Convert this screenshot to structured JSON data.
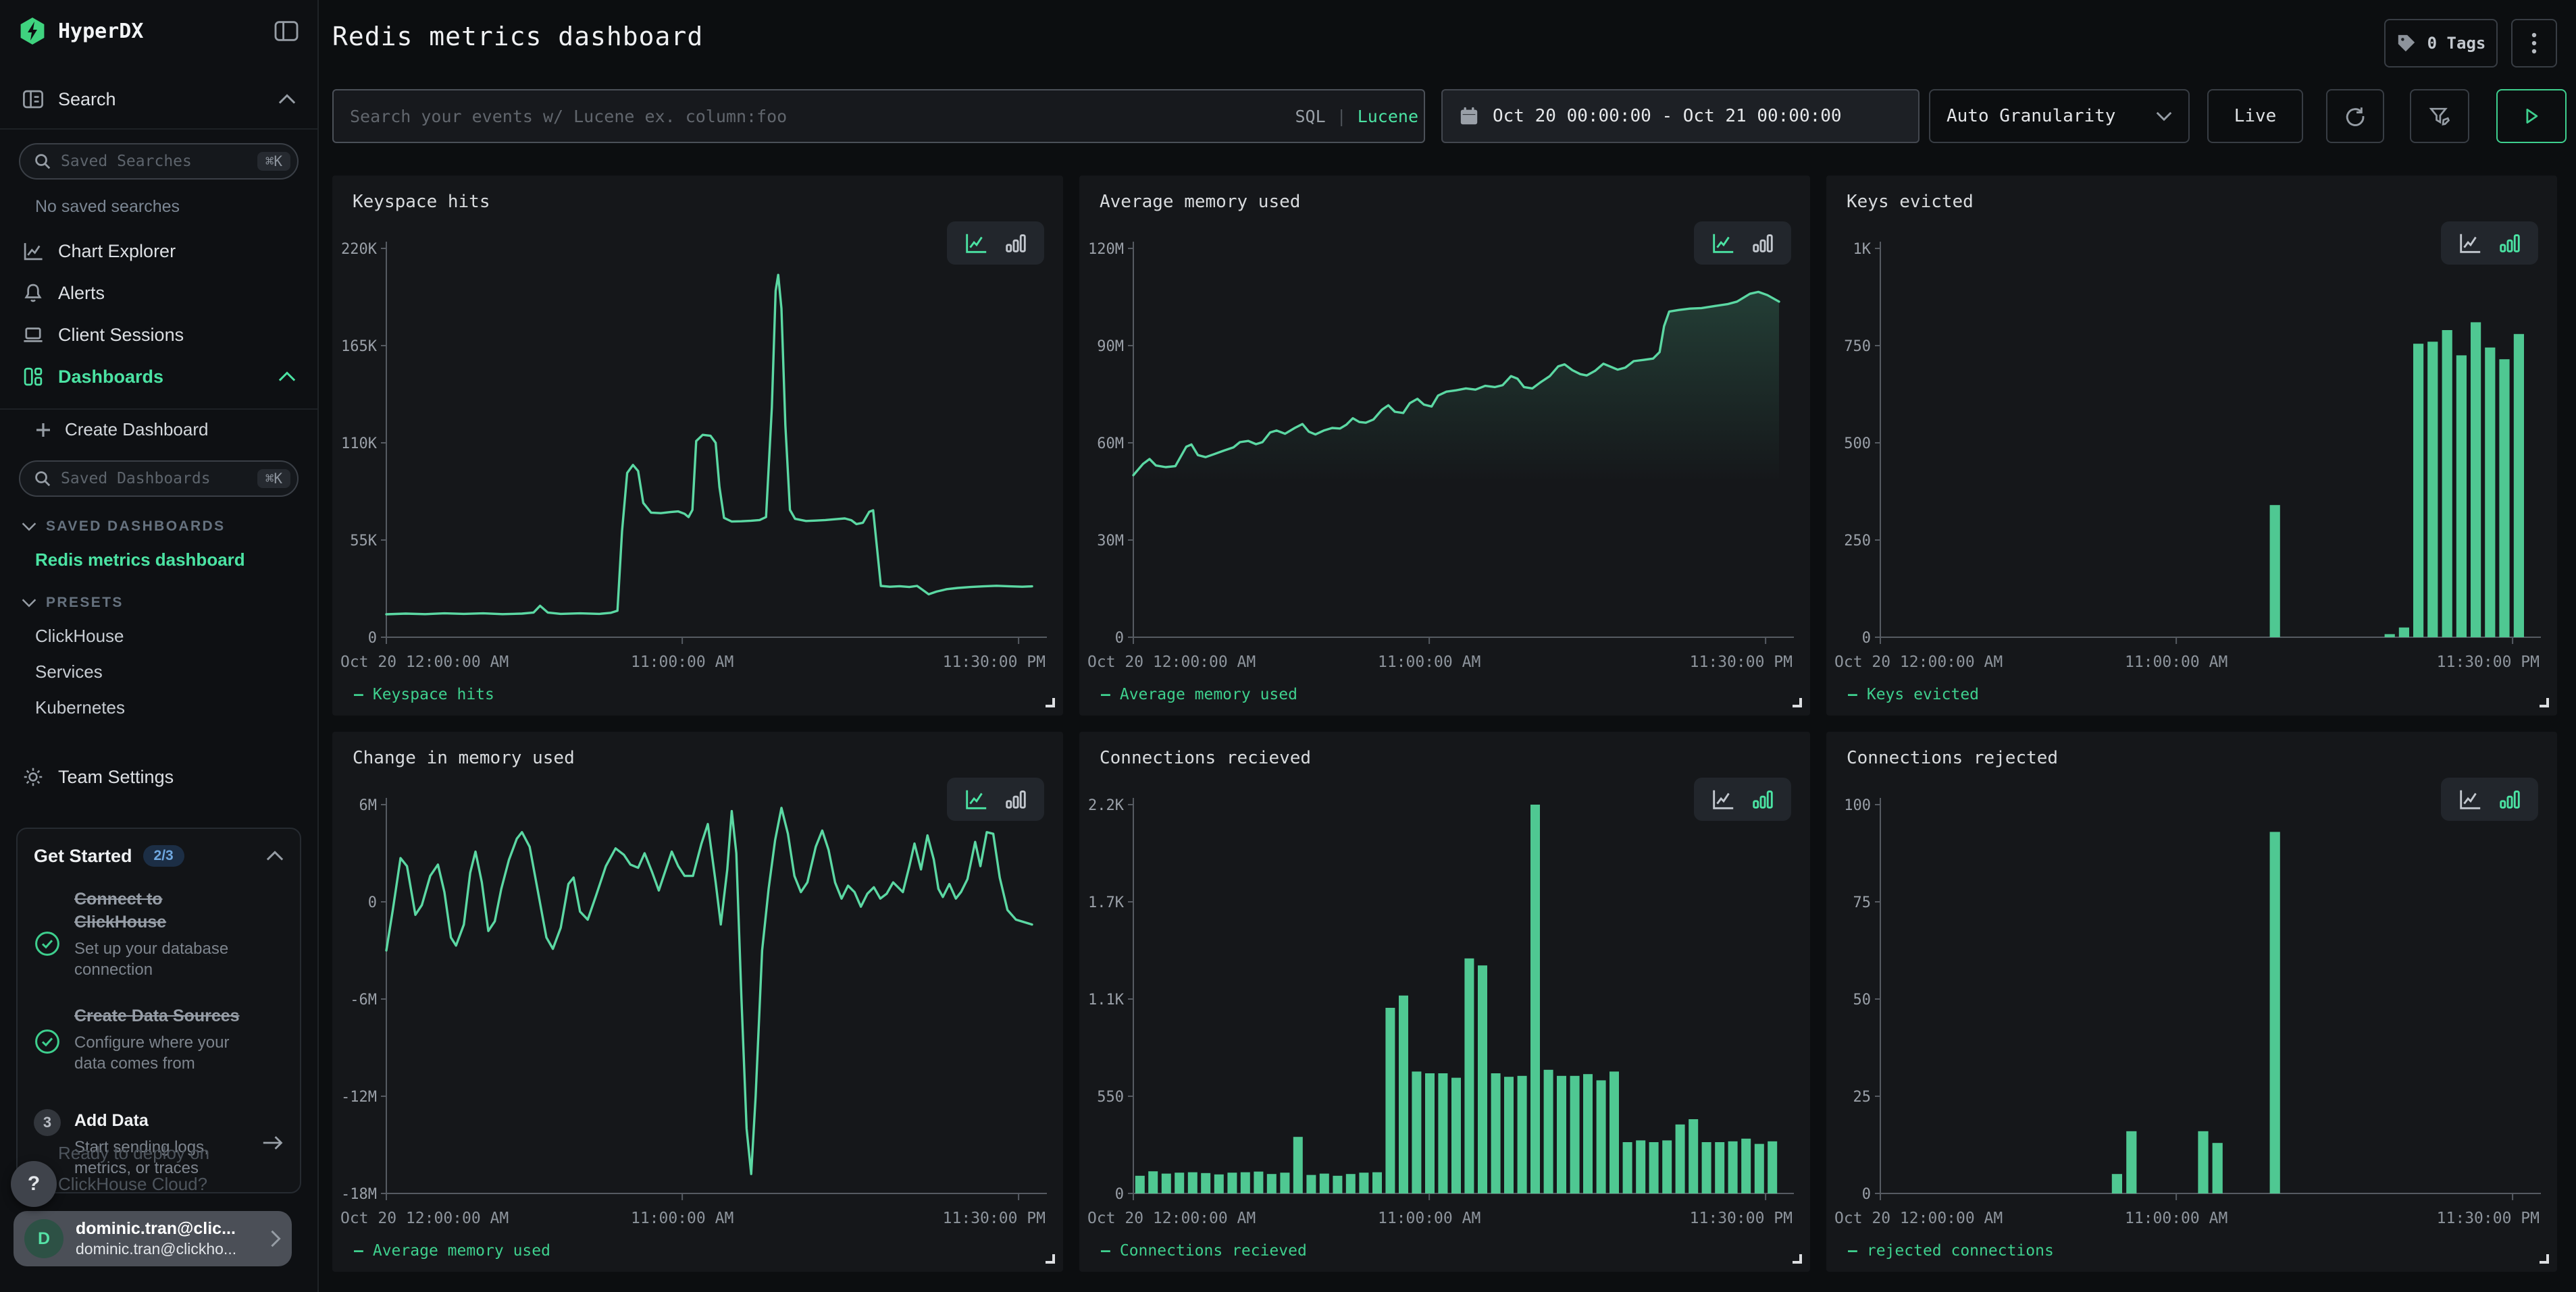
{
  "app": {
    "logo_text": "HyperDX"
  },
  "header": {
    "title": "Redis metrics dashboard",
    "tags_label": "0 Tags"
  },
  "toolbar": {
    "search_placeholder": "Search your events w/ Lucene ex. column:foo",
    "sql": "SQL",
    "divider": "|",
    "lucene": "Lucene",
    "time_range": "Oct 20 00:00:00 - Oct 21 00:00:00",
    "granularity": "Auto Granularity",
    "live": "Live"
  },
  "sidebar": {
    "search_group": {
      "label": "Search",
      "saved_placeholder": "Saved Searches",
      "shortcut": "⌘K",
      "empty": "No saved searches"
    },
    "nav": [
      {
        "label": "Chart Explorer"
      },
      {
        "label": "Alerts"
      },
      {
        "label": "Client Sessions"
      },
      {
        "label": "Dashboards",
        "active": true
      }
    ],
    "create_label": "Create Dashboard",
    "dashboards_search": {
      "placeholder": "Saved Dashboards",
      "shortcut": "⌘K"
    },
    "saved_header": "SAVED DASHBOARDS",
    "saved_items": [
      {
        "label": "Redis metrics dashboard"
      }
    ],
    "presets_header": "PRESETS",
    "preset_items": [
      "ClickHouse",
      "Services",
      "Kubernetes"
    ],
    "team_settings": "Team Settings",
    "get_started": {
      "title": "Get Started",
      "progress": "2/3",
      "items": [
        {
          "title": "Connect to ClickHouse",
          "desc": "Set up your database connection",
          "done": true
        },
        {
          "title": "Create Data Sources",
          "desc": "Configure where your data comes from",
          "done": true
        },
        {
          "title": "Add Data",
          "desc": "Start sending logs, metrics, or traces",
          "done": false,
          "step": "3"
        }
      ]
    },
    "help_label": "?",
    "user": {
      "initial": "D",
      "name": "dominic.tran@clic...",
      "email": "dominic.tran@clickho..."
    },
    "behind_text": [
      "Ready to deploy on",
      "ClickHouse Cloud?"
    ]
  },
  "x_axis": {
    "ticks": [
      {
        "label": "Oct 20 12:00:00 AM",
        "pos": 0,
        "align": "start"
      },
      {
        "label": "11:00:00 AM",
        "pos": 0.4583,
        "align": "middle"
      },
      {
        "label": "11:30:00 PM",
        "pos": 0.9792,
        "align": "end"
      }
    ]
  },
  "colors": {
    "line": "#5bd8a3",
    "bar": "#4fc892",
    "legend": "#3fd08e",
    "axis": "#565b62",
    "tick_text": "#9aa0a8"
  },
  "chart_data": [
    {
      "type": "line",
      "title": "Keyspace hits",
      "legend": "Keyspace hits",
      "ymin": 0,
      "ymax": 220,
      "yticks": [
        "220K",
        "165K",
        "110K",
        "55K",
        "0"
      ],
      "points": [
        [
          0,
          13
        ],
        [
          0.03,
          13.4
        ],
        [
          0.06,
          13.1
        ],
        [
          0.09,
          13.5
        ],
        [
          0.12,
          13.2
        ],
        [
          0.15,
          13.5
        ],
        [
          0.18,
          13.1
        ],
        [
          0.21,
          13.4
        ],
        [
          0.228,
          14
        ],
        [
          0.238,
          17.8
        ],
        [
          0.25,
          14
        ],
        [
          0.27,
          13.2
        ],
        [
          0.3,
          13.5
        ],
        [
          0.33,
          13.2
        ],
        [
          0.348,
          13.8
        ],
        [
          0.358,
          15
        ],
        [
          0.365,
          60
        ],
        [
          0.373,
          93
        ],
        [
          0.382,
          97.5
        ],
        [
          0.39,
          94
        ],
        [
          0.398,
          76
        ],
        [
          0.41,
          70.5
        ],
        [
          0.425,
          70.2
        ],
        [
          0.44,
          70.8
        ],
        [
          0.452,
          71.2
        ],
        [
          0.462,
          69.8
        ],
        [
          0.468,
          68
        ],
        [
          0.474,
          72
        ],
        [
          0.48,
          111
        ],
        [
          0.49,
          114.5
        ],
        [
          0.502,
          114
        ],
        [
          0.51,
          110
        ],
        [
          0.516,
          85
        ],
        [
          0.523,
          67.5
        ],
        [
          0.535,
          65.5
        ],
        [
          0.55,
          65.6
        ],
        [
          0.565,
          65.9
        ],
        [
          0.578,
          66.3
        ],
        [
          0.588,
          68
        ],
        [
          0.597,
          130
        ],
        [
          0.603,
          196
        ],
        [
          0.607,
          205
        ],
        [
          0.612,
          186
        ],
        [
          0.618,
          120
        ],
        [
          0.625,
          72
        ],
        [
          0.633,
          67
        ],
        [
          0.65,
          65.8
        ],
        [
          0.665,
          66
        ],
        [
          0.68,
          66.3
        ],
        [
          0.695,
          66.8
        ],
        [
          0.71,
          67.2
        ],
        [
          0.72,
          66.2
        ],
        [
          0.728,
          64
        ],
        [
          0.738,
          64.8
        ],
        [
          0.748,
          71
        ],
        [
          0.754,
          71.8
        ],
        [
          0.76,
          50
        ],
        [
          0.766,
          29
        ],
        [
          0.78,
          28.6
        ],
        [
          0.795,
          28.9
        ],
        [
          0.81,
          28.4
        ],
        [
          0.822,
          29
        ],
        [
          0.83,
          27
        ],
        [
          0.84,
          24.3
        ],
        [
          0.852,
          25.8
        ],
        [
          0.868,
          27.2
        ],
        [
          0.885,
          27.9
        ],
        [
          0.905,
          28.4
        ],
        [
          0.925,
          28.8
        ],
        [
          0.945,
          29.1
        ],
        [
          0.965,
          28.8
        ],
        [
          0.985,
          28.6
        ],
        [
          1,
          28.8
        ]
      ]
    },
    {
      "type": "line",
      "title": "Average memory used",
      "legend": "Average memory used",
      "area": true,
      "ymin": 0,
      "ymax": 120,
      "yticks": [
        "120M",
        "90M",
        "60M",
        "30M",
        "0"
      ],
      "points": [
        [
          0,
          50
        ],
        [
          0.015,
          53.5
        ],
        [
          0.025,
          55
        ],
        [
          0.035,
          53
        ],
        [
          0.05,
          52.5
        ],
        [
          0.065,
          52.8
        ],
        [
          0.082,
          58.8
        ],
        [
          0.09,
          59.5
        ],
        [
          0.1,
          56.2
        ],
        [
          0.112,
          55.6
        ],
        [
          0.125,
          56.5
        ],
        [
          0.14,
          57.6
        ],
        [
          0.155,
          58.6
        ],
        [
          0.165,
          60.2
        ],
        [
          0.178,
          60.6
        ],
        [
          0.19,
          59.6
        ],
        [
          0.2,
          60.2
        ],
        [
          0.212,
          63.2
        ],
        [
          0.222,
          63.8
        ],
        [
          0.235,
          62.8
        ],
        [
          0.25,
          64.6
        ],
        [
          0.262,
          65.8
        ],
        [
          0.272,
          63.4
        ],
        [
          0.282,
          62.6
        ],
        [
          0.295,
          63.8
        ],
        [
          0.308,
          64.6
        ],
        [
          0.32,
          64.4
        ],
        [
          0.33,
          65.6
        ],
        [
          0.34,
          67.6
        ],
        [
          0.35,
          66.4
        ],
        [
          0.36,
          66.2
        ],
        [
          0.372,
          67.2
        ],
        [
          0.385,
          70.2
        ],
        [
          0.395,
          71.6
        ],
        [
          0.405,
          69.6
        ],
        [
          0.418,
          69.2
        ],
        [
          0.428,
          72.2
        ],
        [
          0.44,
          73.6
        ],
        [
          0.45,
          71.8
        ],
        [
          0.462,
          71.2
        ],
        [
          0.472,
          74.6
        ],
        [
          0.485,
          75.8
        ],
        [
          0.5,
          76.2
        ],
        [
          0.515,
          76.8
        ],
        [
          0.53,
          76.4
        ],
        [
          0.545,
          77.6
        ],
        [
          0.56,
          77.2
        ],
        [
          0.572,
          77.8
        ],
        [
          0.585,
          80.6
        ],
        [
          0.595,
          79.8
        ],
        [
          0.605,
          77.2
        ],
        [
          0.618,
          76.8
        ],
        [
          0.63,
          78.6
        ],
        [
          0.645,
          80.6
        ],
        [
          0.658,
          83.6
        ],
        [
          0.668,
          84.2
        ],
        [
          0.68,
          82.4
        ],
        [
          0.692,
          81.2
        ],
        [
          0.702,
          80.8
        ],
        [
          0.715,
          82.2
        ],
        [
          0.728,
          84.4
        ],
        [
          0.738,
          83.6
        ],
        [
          0.75,
          82.6
        ],
        [
          0.762,
          83.2
        ],
        [
          0.775,
          85.2
        ],
        [
          0.79,
          85.6
        ],
        [
          0.805,
          86
        ],
        [
          0.815,
          88
        ],
        [
          0.822,
          96
        ],
        [
          0.83,
          100.5
        ],
        [
          0.845,
          101
        ],
        [
          0.862,
          101.4
        ],
        [
          0.88,
          101.6
        ],
        [
          0.9,
          102.2
        ],
        [
          0.92,
          102.8
        ],
        [
          0.935,
          103.6
        ],
        [
          0.955,
          106
        ],
        [
          0.968,
          106.6
        ],
        [
          0.982,
          105.6
        ],
        [
          1,
          103.6
        ]
      ]
    },
    {
      "type": "bar",
      "title": "Keys evicted",
      "legend": "Keys evicted",
      "ymin": 0,
      "ymax": 1000,
      "yticks": [
        "1K",
        "750",
        "500",
        "250",
        "0"
      ],
      "values": [
        0,
        0,
        0,
        0,
        0,
        0,
        0,
        0,
        0,
        0,
        0,
        0,
        0,
        0,
        0,
        0,
        0,
        0,
        0,
        0,
        0,
        0,
        0,
        0,
        0,
        0,
        0,
        340,
        0,
        0,
        0,
        0,
        0,
        0,
        0,
        8,
        25,
        755,
        760,
        790,
        725,
        810,
        745,
        715,
        780
      ]
    },
    {
      "type": "line",
      "title": "Change in memory used",
      "legend": "Average memory used",
      "ymin": -18,
      "ymax": 6,
      "yticks": [
        "6M",
        "0",
        "-6M",
        "-12M",
        "-18M"
      ],
      "points": [
        [
          0,
          -3
        ],
        [
          0.01,
          -0.5
        ],
        [
          0.022,
          2.7
        ],
        [
          0.032,
          2.2
        ],
        [
          0.045,
          -0.8
        ],
        [
          0.055,
          -0.2
        ],
        [
          0.068,
          1.6
        ],
        [
          0.08,
          2.3
        ],
        [
          0.09,
          0.6
        ],
        [
          0.1,
          -2.2
        ],
        [
          0.108,
          -2.7
        ],
        [
          0.12,
          -1.4
        ],
        [
          0.13,
          1.8
        ],
        [
          0.138,
          3.1
        ],
        [
          0.148,
          1.2
        ],
        [
          0.158,
          -1.8
        ],
        [
          0.168,
          -1.2
        ],
        [
          0.178,
          0.8
        ],
        [
          0.19,
          2.6
        ],
        [
          0.202,
          3.9
        ],
        [
          0.21,
          4.3
        ],
        [
          0.222,
          3.4
        ],
        [
          0.235,
          0.6
        ],
        [
          0.248,
          -2.2
        ],
        [
          0.258,
          -2.9
        ],
        [
          0.27,
          -1.6
        ],
        [
          0.282,
          1.1
        ],
        [
          0.29,
          1.5
        ],
        [
          0.3,
          -0.6
        ],
        [
          0.312,
          -1.1
        ],
        [
          0.325,
          0.4
        ],
        [
          0.34,
          2.2
        ],
        [
          0.355,
          3.3
        ],
        [
          0.368,
          2.9
        ],
        [
          0.378,
          2.3
        ],
        [
          0.39,
          2.1
        ],
        [
          0.4,
          3
        ],
        [
          0.412,
          1.8
        ],
        [
          0.422,
          0.7
        ],
        [
          0.432,
          1.9
        ],
        [
          0.442,
          3.1
        ],
        [
          0.452,
          2.2
        ],
        [
          0.462,
          1.6
        ],
        [
          0.475,
          1.6
        ],
        [
          0.488,
          3.6
        ],
        [
          0.498,
          4.8
        ],
        [
          0.51,
          1.2
        ],
        [
          0.518,
          -1.4
        ],
        [
          0.528,
          2
        ],
        [
          0.535,
          5.6
        ],
        [
          0.542,
          3
        ],
        [
          0.55,
          -6
        ],
        [
          0.558,
          -14
        ],
        [
          0.565,
          -16.8
        ],
        [
          0.572,
          -12
        ],
        [
          0.582,
          -3
        ],
        [
          0.592,
          0.8
        ],
        [
          0.602,
          3.8
        ],
        [
          0.612,
          5.8
        ],
        [
          0.622,
          4.2
        ],
        [
          0.632,
          1.6
        ],
        [
          0.642,
          0.6
        ],
        [
          0.652,
          1.2
        ],
        [
          0.665,
          3.4
        ],
        [
          0.675,
          4.4
        ],
        [
          0.685,
          3.2
        ],
        [
          0.695,
          1.2
        ],
        [
          0.705,
          0.2
        ],
        [
          0.715,
          1
        ],
        [
          0.725,
          0.6
        ],
        [
          0.735,
          -0.3
        ],
        [
          0.745,
          0.5
        ],
        [
          0.755,
          0.9
        ],
        [
          0.765,
          0.2
        ],
        [
          0.775,
          0.5
        ],
        [
          0.785,
          1.2
        ],
        [
          0.8,
          0.6
        ],
        [
          0.81,
          2.2
        ],
        [
          0.818,
          3.6
        ],
        [
          0.828,
          2
        ],
        [
          0.838,
          4.1
        ],
        [
          0.848,
          2.6
        ],
        [
          0.855,
          0.8
        ],
        [
          0.862,
          0.3
        ],
        [
          0.872,
          1.1
        ],
        [
          0.882,
          0.2
        ],
        [
          0.89,
          0.6
        ],
        [
          0.9,
          1.4
        ],
        [
          0.912,
          3.7
        ],
        [
          0.92,
          2.2
        ],
        [
          0.93,
          4.3
        ],
        [
          0.94,
          4.2
        ],
        [
          0.95,
          1.5
        ],
        [
          0.962,
          -0.5
        ],
        [
          0.975,
          -1.1
        ],
        [
          1,
          -1.4
        ]
      ]
    },
    {
      "type": "bar",
      "title": "Connections recieved",
      "legend": "Connections recieved",
      "ymin": 0,
      "ymax": 2200,
      "yticks": [
        "2.2K",
        "1.7K",
        "1.1K",
        "550",
        "0"
      ],
      "values": [
        100,
        125,
        112,
        118,
        120,
        115,
        108,
        118,
        120,
        124,
        110,
        118,
        320,
        105,
        112,
        100,
        110,
        118,
        120,
        1050,
        1120,
        690,
        680,
        680,
        655,
        1330,
        1290,
        680,
        660,
        665,
        2200,
        700,
        665,
        665,
        675,
        640,
        690,
        290,
        300,
        290,
        300,
        390,
        420,
        290,
        290,
        295,
        310,
        280,
        295
      ]
    },
    {
      "type": "bar",
      "title": "Connections rejected",
      "legend": "rejected connections",
      "ymin": 0,
      "ymax": 100,
      "yticks": [
        "100",
        "75",
        "50",
        "25",
        "0"
      ],
      "values": [
        0,
        0,
        0,
        0,
        0,
        0,
        0,
        0,
        0,
        0,
        0,
        0,
        0,
        0,
        0,
        0,
        5,
        16,
        0,
        0,
        0,
        0,
        16,
        13,
        0,
        0,
        0,
        93,
        0,
        0,
        0,
        0,
        0,
        0,
        0,
        0,
        0,
        0,
        0,
        0,
        0,
        0,
        0,
        0,
        0
      ]
    }
  ]
}
